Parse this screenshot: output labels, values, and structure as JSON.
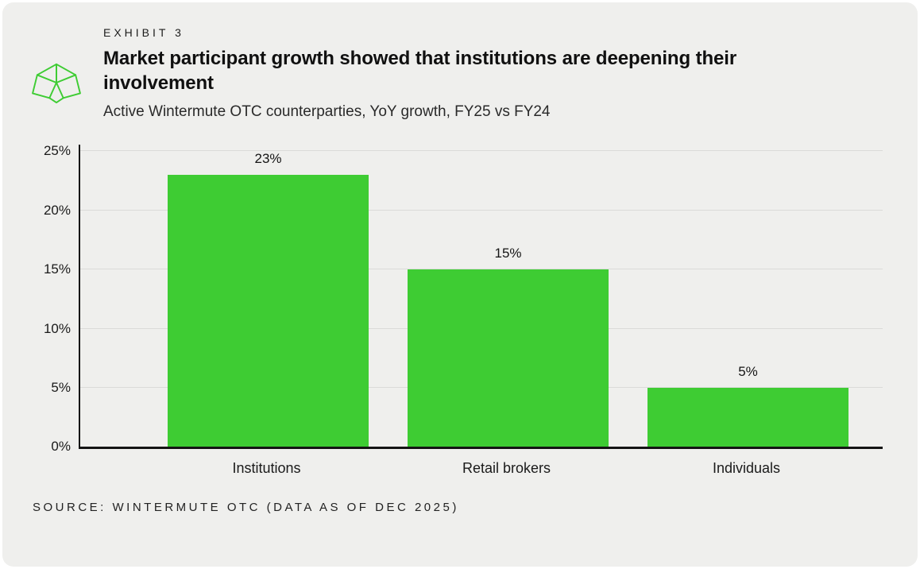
{
  "colors": {
    "panel_background": "#EFEFED",
    "page_background": "#FFFFFF",
    "bar": "#3ECC33",
    "logo": "#3ECC33",
    "text": "#141414",
    "gridline": "#DBDBD9",
    "axis": "#141414"
  },
  "header": {
    "exhibit_label": "EXHIBIT 3",
    "title": "Market participant growth showed that institutions are deepening their involvement",
    "subtitle": "Active Wintermute OTC counterparties, YoY growth, FY25 vs FY24"
  },
  "chart_data": {
    "type": "bar",
    "categories": [
      "Institutions",
      "Retail brokers",
      "Individuals"
    ],
    "values": [
      23,
      15,
      5
    ],
    "value_labels": [
      "23%",
      "15%",
      "5%"
    ],
    "title": "Market participant growth showed that institutions are deepening their involvement",
    "subtitle": "Active Wintermute OTC counterparties, YoY growth, FY25 vs FY24",
    "xlabel": "",
    "ylabel": "",
    "ylim": [
      0,
      25
    ],
    "ytick_values": [
      0,
      5,
      10,
      15,
      20,
      25
    ],
    "ytick_labels": [
      "0%",
      "5%",
      "10%",
      "15%",
      "20%",
      "25%"
    ],
    "grid": true,
    "legend": false,
    "bar_color": "#3ECC33"
  },
  "footer": {
    "source": "SOURCE: WINTERMUTE OTC (DATA AS OF DEC 2025)"
  }
}
